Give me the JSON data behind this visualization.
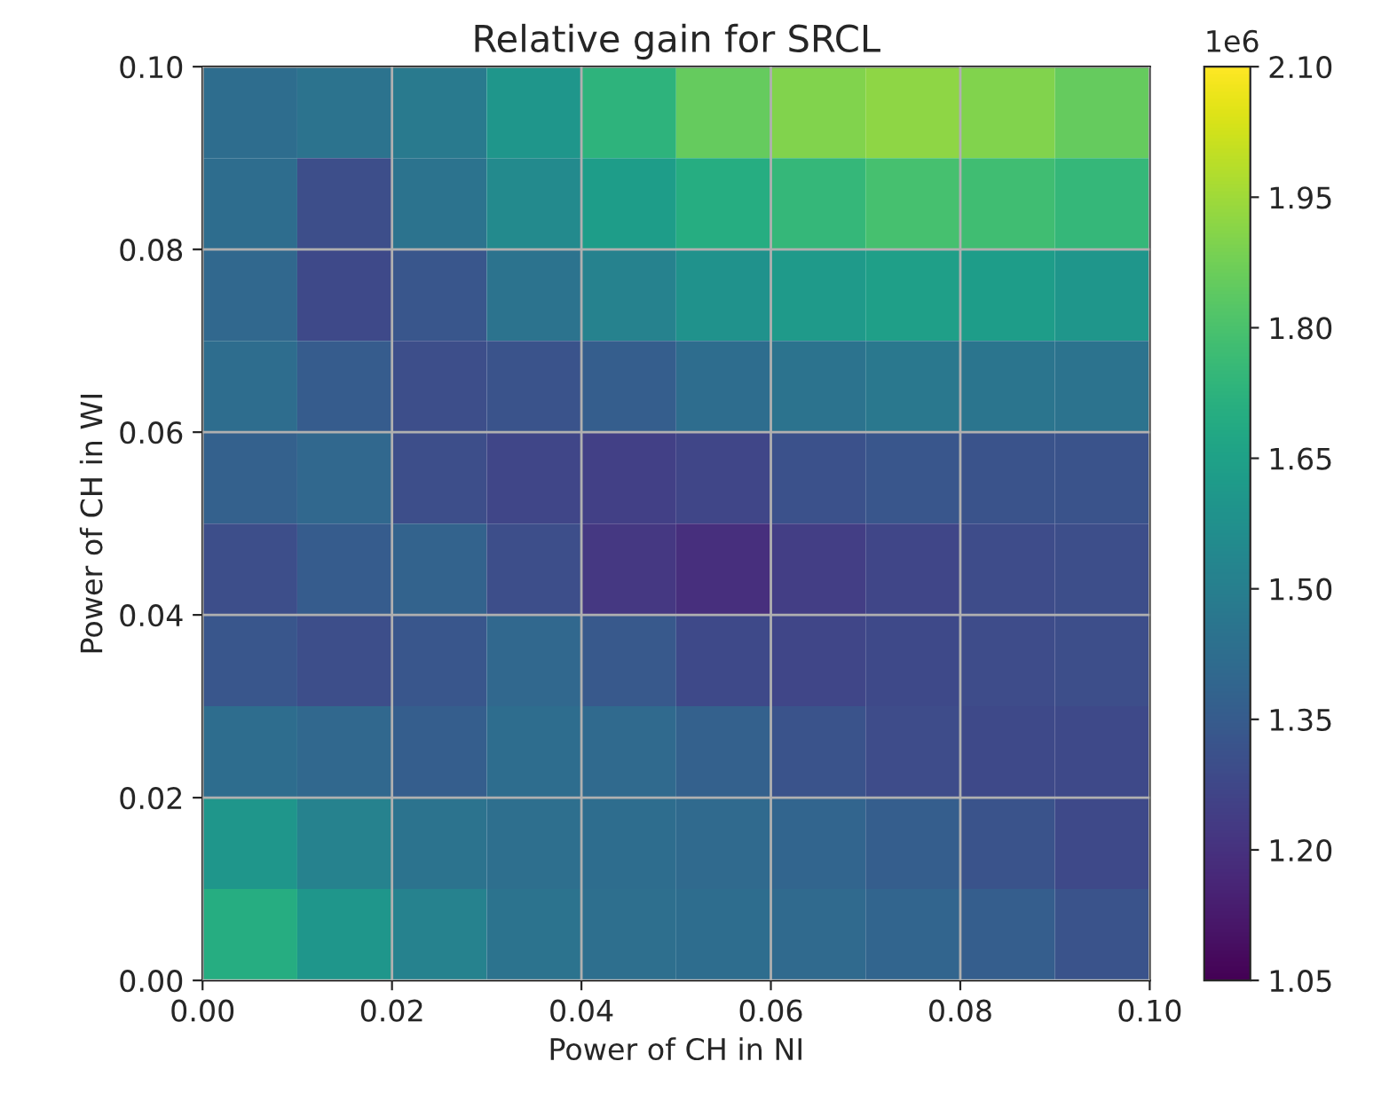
{
  "chart_data": {
    "type": "heatmap",
    "title": "Relative gain for SRCL",
    "xlabel": "Power of CH in NI",
    "ylabel": "Power of CH in WI",
    "clabel": "1e6",
    "xlim": [
      0,
      0.1
    ],
    "ylim": [
      0,
      0.1
    ],
    "xticks": [
      {
        "value": 0,
        "label": "0.00"
      },
      {
        "value": 0.02,
        "label": "0.02"
      },
      {
        "value": 0.04,
        "label": "0.04"
      },
      {
        "value": 0.06,
        "label": "0.06"
      },
      {
        "value": 0.08,
        "label": "0.08"
      },
      {
        "value": 0.1,
        "label": "0.10"
      }
    ],
    "yticks": [
      {
        "value": 0,
        "label": "0.00"
      },
      {
        "value": 0.02,
        "label": "0.02"
      },
      {
        "value": 0.04,
        "label": "0.04"
      },
      {
        "value": 0.06,
        "label": "0.06"
      },
      {
        "value": 0.08,
        "label": "0.08"
      },
      {
        "value": 0.1,
        "label": "0.10"
      }
    ],
    "clim": [
      1.05,
      2.1
    ],
    "cticks": [
      {
        "value": 1.05,
        "label": "1.05"
      },
      {
        "value": 1.2,
        "label": "1.20"
      },
      {
        "value": 1.35,
        "label": "1.35"
      },
      {
        "value": 1.5,
        "label": "1.50"
      },
      {
        "value": 1.65,
        "label": "1.65"
      },
      {
        "value": 1.8,
        "label": "1.80"
      },
      {
        "value": 1.95,
        "label": "1.95"
      },
      {
        "value": 2.1,
        "label": "2.10"
      }
    ],
    "grid": true,
    "cells": [
      [
        1.42,
        1.45,
        1.48,
        1.6,
        1.73,
        1.85,
        1.9,
        1.92,
        1.9,
        1.85
      ],
      [
        1.42,
        1.3,
        1.45,
        1.55,
        1.63,
        1.7,
        1.75,
        1.79,
        1.78,
        1.75
      ],
      [
        1.4,
        1.28,
        1.33,
        1.45,
        1.51,
        1.58,
        1.62,
        1.64,
        1.63,
        1.6
      ],
      [
        1.42,
        1.35,
        1.3,
        1.32,
        1.36,
        1.42,
        1.45,
        1.47,
        1.46,
        1.45
      ],
      [
        1.37,
        1.4,
        1.3,
        1.27,
        1.25,
        1.27,
        1.31,
        1.33,
        1.32,
        1.32
      ],
      [
        1.3,
        1.35,
        1.38,
        1.3,
        1.22,
        1.19,
        1.24,
        1.27,
        1.29,
        1.3
      ],
      [
        1.33,
        1.3,
        1.33,
        1.4,
        1.34,
        1.28,
        1.27,
        1.28,
        1.29,
        1.3
      ],
      [
        1.42,
        1.4,
        1.36,
        1.42,
        1.41,
        1.37,
        1.32,
        1.29,
        1.28,
        1.28
      ],
      [
        1.6,
        1.51,
        1.45,
        1.43,
        1.42,
        1.41,
        1.39,
        1.36,
        1.32,
        1.28
      ],
      [
        1.7,
        1.6,
        1.51,
        1.45,
        1.43,
        1.42,
        1.41,
        1.39,
        1.36,
        1.32
      ]
    ]
  }
}
